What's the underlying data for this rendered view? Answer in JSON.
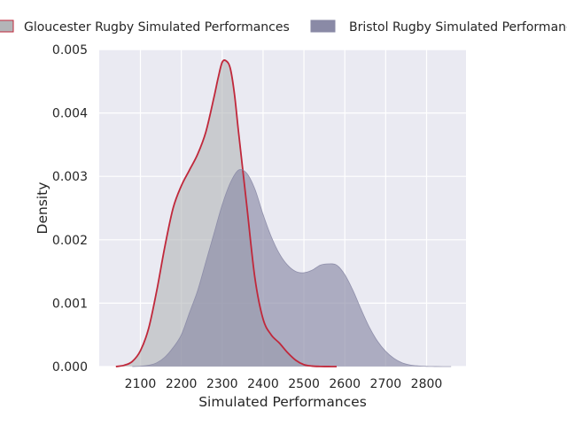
{
  "chart_data": {
    "type": "area",
    "xlabel": "Simulated Performances",
    "ylabel": "Density",
    "xlim": [
      2020,
      2870
    ],
    "ylim": [
      0,
      0.005
    ],
    "xticks": [
      2100,
      2200,
      2300,
      2400,
      2500,
      2600,
      2700,
      2800
    ],
    "xtick_labels": [
      "2100",
      "2200",
      "2300",
      "2400",
      "2500",
      "2600",
      "2700",
      "2800"
    ],
    "yticks": [
      0,
      0.001,
      0.002,
      0.003,
      0.004,
      0.005
    ],
    "ytick_labels": [
      "0.000",
      "0.001",
      "0.002",
      "0.003",
      "0.004",
      "0.005"
    ],
    "grid": true,
    "legend_placement": "top",
    "series": [
      {
        "name": "Gloucester Rugby Simulated Performances",
        "fill_color": "#b3b5b8",
        "line_color": "#c0283b",
        "x": [
          2040,
          2060,
          2080,
          2100,
          2120,
          2140,
          2160,
          2180,
          2200,
          2220,
          2240,
          2260,
          2280,
          2290,
          2300,
          2310,
          2320,
          2330,
          2340,
          2360,
          2380,
          2400,
          2420,
          2440,
          2460,
          2480,
          2500,
          2520,
          2540,
          2560,
          2580
        ],
        "y": [
          0.0,
          2e-05,
          8e-05,
          0.00025,
          0.0006,
          0.0012,
          0.0019,
          0.0025,
          0.00285,
          0.0031,
          0.00335,
          0.0037,
          0.00425,
          0.00455,
          0.0048,
          0.00482,
          0.0047,
          0.0043,
          0.0037,
          0.00255,
          0.0014,
          0.00075,
          0.0005,
          0.00037,
          0.00022,
          0.0001,
          3e-05,
          8e-06,
          2e-06,
          5e-07,
          0.0
        ]
      },
      {
        "name": "Bristol Rugby Simulated Performances",
        "fill_color": "#8a8aa6",
        "line_color": "#8a8aa6",
        "x": [
          2080,
          2100,
          2120,
          2140,
          2160,
          2180,
          2200,
          2220,
          2240,
          2260,
          2280,
          2300,
          2320,
          2340,
          2360,
          2380,
          2400,
          2420,
          2440,
          2460,
          2480,
          2500,
          2520,
          2540,
          2560,
          2580,
          2600,
          2620,
          2640,
          2660,
          2680,
          2700,
          2720,
          2740,
          2760,
          2780,
          2800,
          2820,
          2840,
          2860
        ],
        "y": [
          0.0,
          5e-06,
          2e-05,
          6e-05,
          0.00015,
          0.0003,
          0.0005,
          0.00085,
          0.0012,
          0.00165,
          0.0021,
          0.00255,
          0.0029,
          0.0031,
          0.00305,
          0.0028,
          0.0024,
          0.00205,
          0.00178,
          0.0016,
          0.0015,
          0.00148,
          0.00152,
          0.0016,
          0.00162,
          0.0016,
          0.00145,
          0.0012,
          0.0009,
          0.00062,
          0.0004,
          0.00024,
          0.00013,
          6e-05,
          2.5e-05,
          1e-05,
          3e-06,
          1e-06,
          2e-07,
          0.0
        ]
      }
    ]
  }
}
